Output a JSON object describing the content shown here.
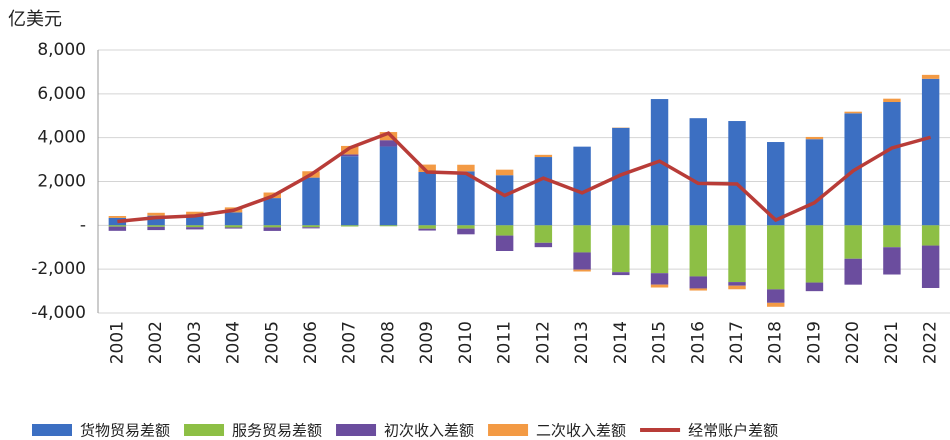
{
  "chart_data": {
    "type": "stacked-bar-line",
    "y_axis_label": "亿美元",
    "categories": [
      "2001",
      "2002",
      "2003",
      "2004",
      "2005",
      "2006",
      "2007",
      "2008",
      "2009",
      "2010",
      "2011",
      "2012",
      "2013",
      "2014",
      "2015",
      "2016",
      "2017",
      "2018",
      "2019",
      "2020",
      "2021",
      "2022"
    ],
    "series": [
      {
        "name": "货物贸易差额",
        "color": "#3c6fc2",
        "kind": "bar",
        "values": [
          340,
          442,
          447,
          590,
          1243,
          2177,
          3154,
          3599,
          2435,
          2464,
          2287,
          3116,
          3590,
          4450,
          5762,
          4889,
          4759,
          3801,
          3930,
          5111,
          5627,
          6686
        ]
      },
      {
        "name": "服务贸易差额",
        "color": "#8dbf45",
        "kind": "bar",
        "values": [
          -59,
          -68,
          -85,
          -97,
          -94,
          -88,
          -53,
          -43,
          -153,
          -151,
          -468,
          -797,
          -1236,
          -2137,
          -2183,
          -2331,
          -2589,
          -2922,
          -2611,
          -1525,
          -999,
          -923
        ]
      },
      {
        "name": "初次收入差额",
        "color": "#6b4d9e",
        "kind": "bar",
        "values": [
          -192,
          -149,
          -102,
          -51,
          -161,
          -51,
          80,
          286,
          -85,
          -259,
          -703,
          -199,
          -784,
          -133,
          -522,
          -549,
          -165,
          -614,
          -392,
          -1182,
          -1245,
          -1936
        ]
      },
      {
        "name": "二次收入差额",
        "color": "#f39a44",
        "kind": "bar",
        "values": [
          85,
          130,
          174,
          229,
          254,
          291,
          389,
          371,
          337,
          300,
          253,
          101,
          -87,
          14,
          -132,
          -95,
          -163,
          -180,
          103,
          75,
          152,
          180
        ]
      },
      {
        "name": "经常账户差额",
        "color": "#b83c38",
        "kind": "line",
        "values": [
          174,
          354,
          431,
          689,
          1324,
          2318,
          3532,
          4206,
          2433,
          2378,
          1361,
          2154,
          1482,
          2300,
          2930,
          1913,
          1887,
          241,
          1029,
          2488,
          3529,
          4019
        ]
      }
    ],
    "ylim": [
      -4000,
      8000
    ],
    "yticks": [
      {
        "value": -4000,
        "label": "-4,000"
      },
      {
        "value": -2000,
        "label": "-2,000"
      },
      {
        "value": 0,
        "label": "-"
      },
      {
        "value": 2000,
        "label": "2,000"
      },
      {
        "value": 4000,
        "label": "4,000"
      },
      {
        "value": 6000,
        "label": "6,000"
      },
      {
        "value": 8000,
        "label": "8,000"
      }
    ],
    "grid": true
  }
}
